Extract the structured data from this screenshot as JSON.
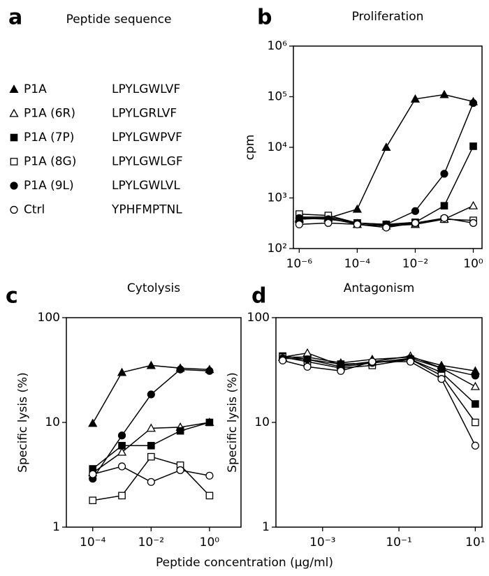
{
  "legend": {
    "letter": "a",
    "title": "Peptide sequence",
    "entries": [
      {
        "name": "P1A",
        "sequence": "LPYLGWLVF",
        "marker": "triangle",
        "filled": true
      },
      {
        "name": "P1A (6R)",
        "sequence": "LPYLGRLVF",
        "marker": "triangle",
        "filled": false
      },
      {
        "name": "P1A (7P)",
        "sequence": "LPYLGWPVF",
        "marker": "square",
        "filled": true
      },
      {
        "name": "P1A (8G)",
        "sequence": "LPYLGWLGF",
        "marker": "square",
        "filled": false
      },
      {
        "name": "P1A (9L)",
        "sequence": "LPYLGWLVL",
        "marker": "circle",
        "filled": true
      },
      {
        "name": "Ctrl",
        "sequence": "YPHFMPTNL",
        "marker": "circle",
        "filled": false
      }
    ]
  },
  "shared_x_label": "Peptide concentration (µg/ml)",
  "chart_data": [
    {
      "type": "line",
      "panel_label": "b",
      "title": "Proliferation",
      "y_label": "cpm",
      "log_x": true,
      "log_y": true,
      "color": "#000000",
      "x": [
        1e-06,
        1e-05,
        0.0001,
        0.001,
        0.01,
        0.1,
        1
      ],
      "xlim": [
        6.3e-07,
        2
      ],
      "ylim": [
        100,
        1000000
      ],
      "xticks": [
        {
          "value": 1e-06,
          "label": "10⁻⁶"
        },
        {
          "value": 0.0001,
          "label": "10⁻⁴"
        },
        {
          "value": 0.01,
          "label": "10⁻²"
        },
        {
          "value": 1,
          "label": "10⁰"
        }
      ],
      "yticks": [
        {
          "value": 100,
          "label": "10²"
        },
        {
          "value": 1000,
          "label": "10³"
        },
        {
          "value": 10000,
          "label": "10⁴"
        },
        {
          "value": 100000,
          "label": "10⁵"
        },
        {
          "value": 1000000,
          "label": "10⁶"
        }
      ],
      "series": [
        {
          "values": [
            380,
            400,
            600,
            10000,
            90000,
            110000,
            80000
          ]
        },
        {
          "values": [
            400,
            400,
            300,
            280,
            300,
            380,
            700
          ]
        },
        {
          "values": [
            420,
            420,
            320,
            300,
            330,
            700,
            10500
          ]
        },
        {
          "values": [
            480,
            450,
            320,
            290,
            320,
            380,
            360
          ]
        },
        {
          "values": [
            400,
            380,
            320,
            300,
            550,
            3000,
            75000
          ]
        },
        {
          "values": [
            300,
            320,
            300,
            260,
            320,
            400,
            320
          ]
        }
      ]
    },
    {
      "type": "line",
      "panel_label": "c",
      "title": "Cytolysis",
      "y_label": "Specific lysis (%)",
      "log_x": true,
      "log_y": true,
      "color": "#000000",
      "x": [
        0.0001,
        0.001,
        0.01,
        0.1,
        1
      ],
      "xlim": [
        1.25e-05,
        12
      ],
      "ylim": [
        1,
        100
      ],
      "xticks": [
        {
          "value": 0.0001,
          "label": "10⁻⁴"
        },
        {
          "value": 0.01,
          "label": "10⁻²"
        },
        {
          "value": 1,
          "label": "10⁰"
        }
      ],
      "yticks": [
        1,
        10,
        100
      ],
      "series": [
        {
          "values": [
            9.8,
            30,
            35,
            33,
            32
          ]
        },
        {
          "values": [
            3.3,
            5.2,
            8.8,
            9,
            10
          ]
        },
        {
          "values": [
            3.6,
            6,
            6,
            8.3,
            10
          ]
        },
        {
          "values": [
            1.8,
            2,
            4.7,
            3.9,
            2
          ]
        },
        {
          "values": [
            2.9,
            7.5,
            18.5,
            32,
            31
          ]
        },
        {
          "values": [
            3.2,
            3.8,
            2.7,
            3.5,
            3.1
          ]
        }
      ]
    },
    {
      "type": "line",
      "panel_label": "d",
      "title": "Antagonism",
      "y_label": "Specific lysis (%)",
      "log_x": true,
      "log_y": true,
      "color": "#000000",
      "x": [
        9e-05,
        0.0004,
        0.003,
        0.02,
        0.2,
        1.3,
        10
      ],
      "xlim": [
        6e-05,
        15
      ],
      "ylim": [
        1,
        100
      ],
      "xticks": [
        {
          "value": 0.001,
          "label": "10⁻³"
        },
        {
          "value": 0.1,
          "label": "10⁻¹"
        },
        {
          "value": 10,
          "label": "10¹"
        }
      ],
      "yticks": [
        1,
        10,
        100
      ],
      "series": [
        {
          "values": [
            42,
            42,
            37,
            40,
            42,
            35,
            31
          ]
        },
        {
          "values": [
            42,
            46,
            35,
            38,
            43,
            33,
            22
          ]
        },
        {
          "values": [
            43,
            40,
            36,
            37,
            40,
            30,
            15
          ]
        },
        {
          "values": [
            42,
            38,
            33,
            35,
            40,
            28,
            10
          ]
        },
        {
          "values": [
            41,
            40,
            34,
            37,
            41,
            33,
            28
          ]
        },
        {
          "values": [
            39,
            34,
            31,
            38,
            38,
            26,
            6
          ]
        }
      ]
    }
  ]
}
